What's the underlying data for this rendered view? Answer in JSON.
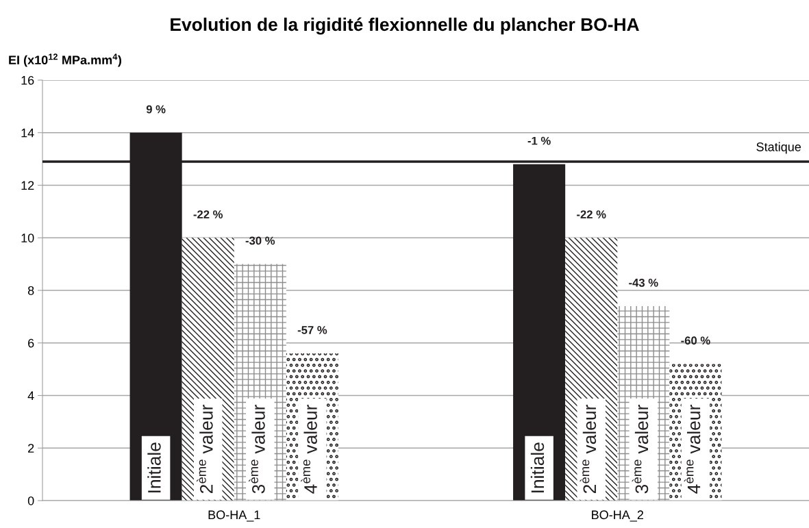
{
  "chart_data": {
    "type": "bar",
    "title": "Evolution de la rigidité flexionnelle du plancher BO-HA",
    "ylabel": "EI (x10$^{12}$ MPa.mm$^{4}$)",
    "categories": [
      "BO-HA_1",
      "BO-HA_2"
    ],
    "series": [
      {
        "name": "Initiale",
        "color": "#231f20",
        "values": [
          14.0,
          12.8
        ]
      },
      {
        "name": "2$^{ème}$ valeur",
        "color": "#231f20",
        "values": [
          10.0,
          10.0
        ]
      },
      {
        "name": "3$^{ème}$ valeur",
        "color": "#8c8c8c",
        "values": [
          9.0,
          7.4
        ]
      },
      {
        "name": "4$^{ème}$ valeur",
        "color": "#231f20",
        "values": [
          5.6,
          5.2
        ]
      }
    ],
    "annotations": [
      "9 %",
      "-1 %",
      "-22 %",
      "-22 %",
      "-30 %",
      "-43 %",
      "-57 %",
      "-60 %"
    ],
    "ylim": [
      0,
      16
    ],
    "yticks": [
      0,
      2,
      4,
      6,
      8,
      10,
      12,
      14,
      16
    ],
    "grid": "y",
    "ref_lines": [
      {
        "axis": "y",
        "value": 12.9,
        "label": "Statique",
        "color": "#231f20"
      }
    ]
  }
}
